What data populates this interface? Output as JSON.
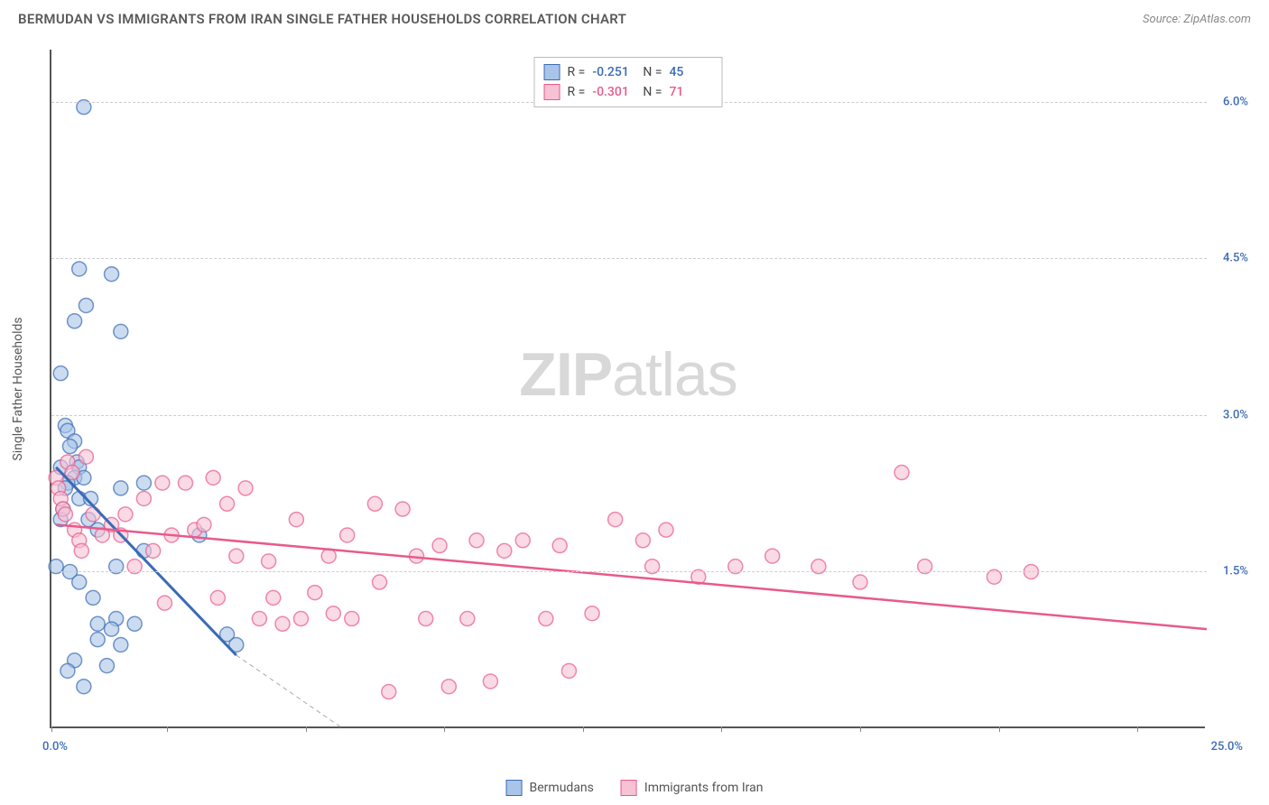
{
  "title": "BERMUDAN VS IMMIGRANTS FROM IRAN SINGLE FATHER HOUSEHOLDS CORRELATION CHART",
  "source": "Source: ZipAtlas.com",
  "watermark_bold": "ZIP",
  "watermark_light": "atlas",
  "y_axis_title": "Single Father Households",
  "chart": {
    "type": "scatter",
    "xlim": [
      0,
      25
    ],
    "ylim": [
      0,
      6.5
    ],
    "x_tick_positions": [
      0,
      2.5,
      5.5,
      8.5,
      11.5,
      14.5,
      17.5,
      20.5,
      23.5
    ],
    "y_ticks": [
      1.5,
      3.0,
      4.5,
      6.0
    ],
    "y_tick_labels": [
      "1.5%",
      "3.0%",
      "4.5%",
      "6.0%"
    ],
    "x_min_label": "0.0%",
    "x_max_label": "25.0%",
    "x_label_color": "#3b6bb5",
    "y_label_color": "#3b6bb5",
    "grid_color": "#cccccc",
    "axis_color": "#555555",
    "background_color": "#ffffff",
    "marker_radius": 8,
    "marker_stroke_width": 1.5,
    "marker_fill_opacity": 0.25,
    "series": [
      {
        "name": "Bermudans",
        "color_stroke": "#3b6bb5",
        "color_fill": "#a9c4e8",
        "R": "-0.251",
        "N": "45",
        "trend_line": {
          "x1": 0.1,
          "y1": 2.5,
          "x2": 4.0,
          "y2": 0.7,
          "width": 3
        },
        "trend_extrap": {
          "x1": 4.0,
          "y1": 0.7,
          "x2": 6.3,
          "y2": 0.0
        },
        "points": [
          [
            0.7,
            5.95
          ],
          [
            0.6,
            4.4
          ],
          [
            1.3,
            4.35
          ],
          [
            0.75,
            4.05
          ],
          [
            1.5,
            3.8
          ],
          [
            0.5,
            3.9
          ],
          [
            0.2,
            3.4
          ],
          [
            0.3,
            2.9
          ],
          [
            0.35,
            2.85
          ],
          [
            0.5,
            2.75
          ],
          [
            0.4,
            2.7
          ],
          [
            0.55,
            2.55
          ],
          [
            0.2,
            2.5
          ],
          [
            0.6,
            2.5
          ],
          [
            0.5,
            2.4
          ],
          [
            0.7,
            2.4
          ],
          [
            0.35,
            2.35
          ],
          [
            0.3,
            2.3
          ],
          [
            0.6,
            2.2
          ],
          [
            0.85,
            2.2
          ],
          [
            1.5,
            2.3
          ],
          [
            2.0,
            2.35
          ],
          [
            0.25,
            2.1
          ],
          [
            0.2,
            2.0
          ],
          [
            0.8,
            2.0
          ],
          [
            1.0,
            1.9
          ],
          [
            2.0,
            1.7
          ],
          [
            3.2,
            1.85
          ],
          [
            0.1,
            1.55
          ],
          [
            1.4,
            1.55
          ],
          [
            0.4,
            1.5
          ],
          [
            0.6,
            1.4
          ],
          [
            0.9,
            1.25
          ],
          [
            1.0,
            1.0
          ],
          [
            1.4,
            1.05
          ],
          [
            1.8,
            1.0
          ],
          [
            1.3,
            0.95
          ],
          [
            1.0,
            0.85
          ],
          [
            1.5,
            0.8
          ],
          [
            3.8,
            0.9
          ],
          [
            4.0,
            0.8
          ],
          [
            0.5,
            0.65
          ],
          [
            1.2,
            0.6
          ],
          [
            0.35,
            0.55
          ],
          [
            0.7,
            0.4
          ]
        ]
      },
      {
        "name": "Immigrants from Iran",
        "color_stroke": "#e85a8a",
        "color_fill": "#f7c2d4",
        "R": "-0.301",
        "N": "71",
        "trend_line": {
          "x1": 0.1,
          "y1": 1.95,
          "x2": 25.0,
          "y2": 0.95,
          "width": 2.5
        },
        "trend_extrap": null,
        "points": [
          [
            0.1,
            2.4
          ],
          [
            0.15,
            2.3
          ],
          [
            0.2,
            2.2
          ],
          [
            0.25,
            2.1
          ],
          [
            0.3,
            2.05
          ],
          [
            0.35,
            2.55
          ],
          [
            0.45,
            2.45
          ],
          [
            0.5,
            1.9
          ],
          [
            0.6,
            1.8
          ],
          [
            0.65,
            1.7
          ],
          [
            0.75,
            2.6
          ],
          [
            0.9,
            2.05
          ],
          [
            1.1,
            1.85
          ],
          [
            1.3,
            1.95
          ],
          [
            1.5,
            1.85
          ],
          [
            1.6,
            2.05
          ],
          [
            1.8,
            1.55
          ],
          [
            2.0,
            2.2
          ],
          [
            2.2,
            1.7
          ],
          [
            2.4,
            2.35
          ],
          [
            2.45,
            1.2
          ],
          [
            2.6,
            1.85
          ],
          [
            2.9,
            2.35
          ],
          [
            3.1,
            1.9
          ],
          [
            3.3,
            1.95
          ],
          [
            3.5,
            2.4
          ],
          [
            3.6,
            1.25
          ],
          [
            3.8,
            2.15
          ],
          [
            4.0,
            1.65
          ],
          [
            4.2,
            2.3
          ],
          [
            4.5,
            1.05
          ],
          [
            4.7,
            1.6
          ],
          [
            4.8,
            1.25
          ],
          [
            5.0,
            1.0
          ],
          [
            5.3,
            2.0
          ],
          [
            5.4,
            1.05
          ],
          [
            5.7,
            1.3
          ],
          [
            6.0,
            1.65
          ],
          [
            6.1,
            1.1
          ],
          [
            6.4,
            1.85
          ],
          [
            6.5,
            1.05
          ],
          [
            7.0,
            2.15
          ],
          [
            7.1,
            1.4
          ],
          [
            7.3,
            0.35
          ],
          [
            7.6,
            2.1
          ],
          [
            7.9,
            1.65
          ],
          [
            8.1,
            1.05
          ],
          [
            8.4,
            1.75
          ],
          [
            8.6,
            0.4
          ],
          [
            9.0,
            1.05
          ],
          [
            9.2,
            1.8
          ],
          [
            9.5,
            0.45
          ],
          [
            9.8,
            1.7
          ],
          [
            10.2,
            1.8
          ],
          [
            10.7,
            1.05
          ],
          [
            11.0,
            1.75
          ],
          [
            11.2,
            0.55
          ],
          [
            11.7,
            1.1
          ],
          [
            12.2,
            2.0
          ],
          [
            12.8,
            1.8
          ],
          [
            13.0,
            1.55
          ],
          [
            13.3,
            1.9
          ],
          [
            14.0,
            1.45
          ],
          [
            14.8,
            1.55
          ],
          [
            15.6,
            1.65
          ],
          [
            16.6,
            1.55
          ],
          [
            17.5,
            1.4
          ],
          [
            18.4,
            2.45
          ],
          [
            18.9,
            1.55
          ],
          [
            20.4,
            1.45
          ],
          [
            21.2,
            1.5
          ]
        ]
      }
    ]
  },
  "legend_top": {
    "r_label": "R =",
    "n_label": "N ="
  },
  "legend_bottom": {
    "items": [
      "Bermudans",
      "Immigrants from Iran"
    ]
  }
}
